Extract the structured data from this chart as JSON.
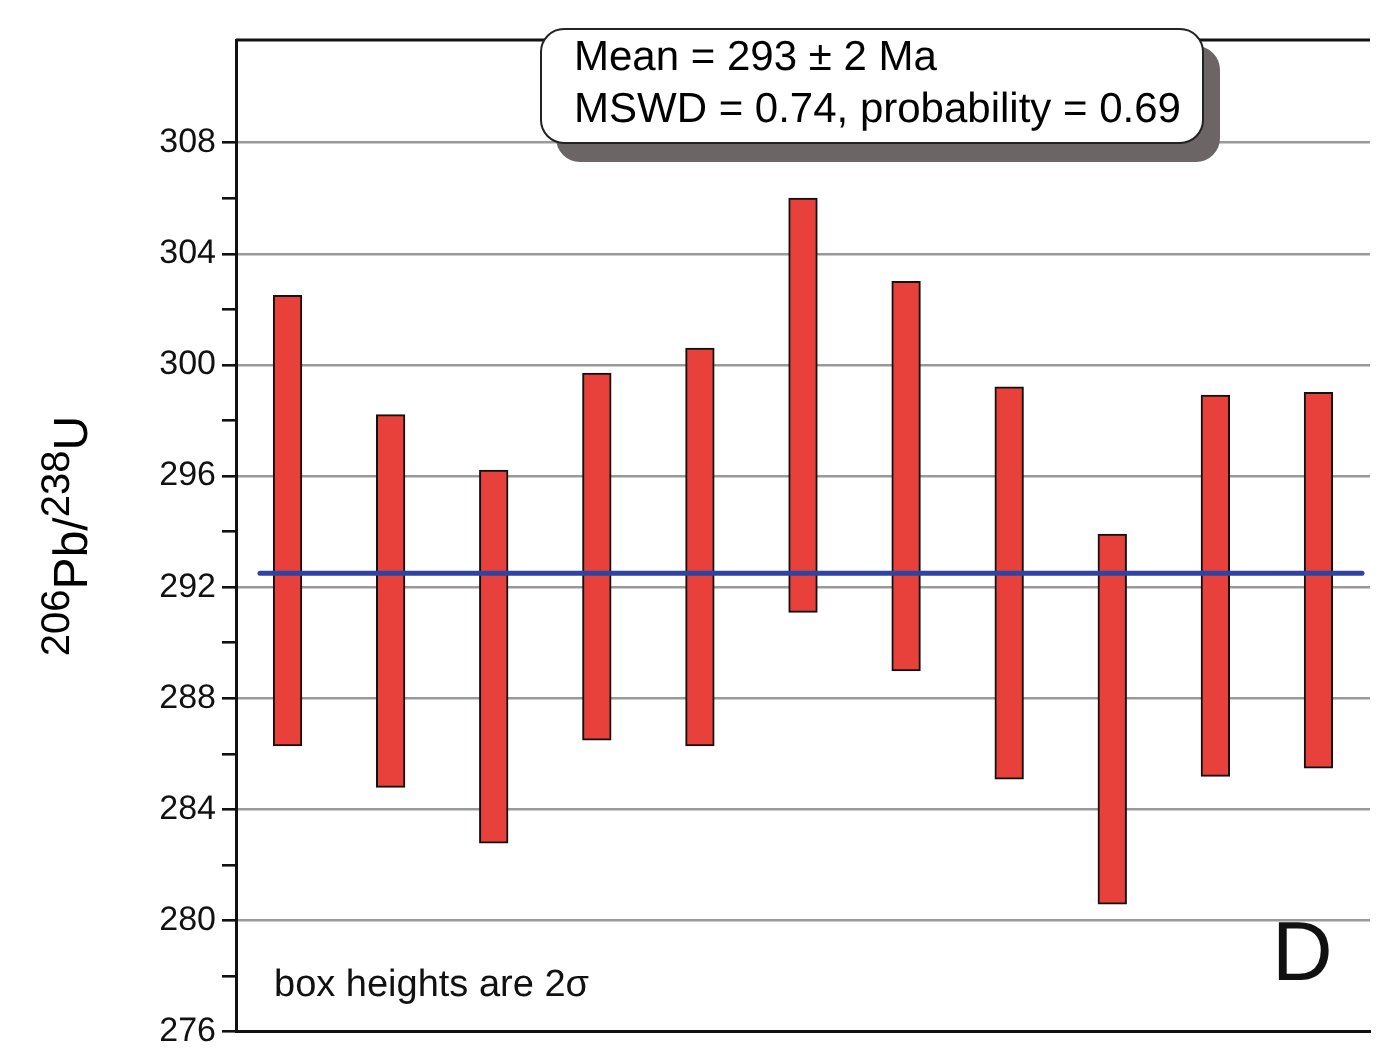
{
  "chart_data": {
    "type": "bar",
    "ylabel": "$^{206}$Pb/$^{238}$U",
    "categories": [
      null,
      null,
      null,
      null,
      null,
      null,
      null,
      null,
      null,
      null,
      null
    ],
    "base": [
      286.3,
      284.8,
      282.8,
      286.5,
      286.3,
      291.1,
      289.0,
      285.1,
      280.6,
      285.2,
      285.5
    ],
    "values": [
      16.2,
      13.4,
      13.4,
      13.2,
      14.3,
      14.9,
      14.0,
      14.1,
      13.3,
      13.7,
      13.5
    ],
    "color": "#e8403a",
    "ylim": [
      276,
      311.7
    ],
    "yticks": [
      276,
      {
        "value": 278,
        "label": null
      },
      280,
      {
        "value": 282,
        "label": null
      },
      284,
      {
        "value": 286,
        "label": null
      },
      288,
      {
        "value": 290,
        "label": null
      },
      292,
      {
        "value": 294,
        "label": null
      },
      296,
      {
        "value": 298,
        "label": null
      },
      300,
      {
        "value": 302,
        "label": null
      },
      304,
      {
        "value": 306,
        "label": null
      },
      308
    ],
    "grid": "y",
    "legend": false,
    "tick_labels": "y",
    "ref_lines": [
      {
        "axis": "y",
        "value": 292.5,
        "color": "#2e44a0"
      }
    ],
    "annotations": [
      "Mean = 293 ± 2 Ma",
      "MSWD = 0.74, probability = 0.69",
      "box heights are 2σ",
      "D"
    ]
  }
}
